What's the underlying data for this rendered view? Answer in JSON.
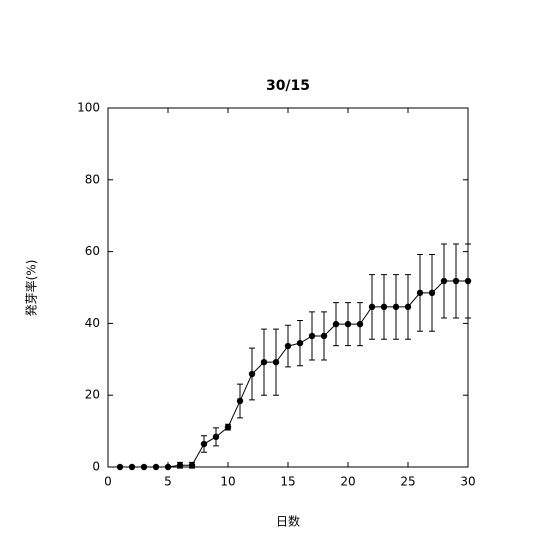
{
  "chart_data": {
    "type": "errorbar",
    "title": "30/15",
    "xlabel": "日数",
    "ylabel": "発芽率(%)",
    "x": [
      1,
      2,
      3,
      4,
      5,
      6,
      7,
      8,
      9,
      10,
      11,
      12,
      13,
      14,
      15,
      16,
      17,
      18,
      19,
      20,
      21,
      22,
      23,
      24,
      25,
      26,
      27,
      28,
      29,
      30
    ],
    "values": [
      0,
      0,
      0,
      0,
      0,
      0.5,
      0.5,
      6.4,
      8.4,
      11.1,
      18.4,
      25.9,
      29.2,
      29.2,
      33.7,
      34.5,
      36.5,
      36.5,
      39.8,
      39.8,
      39.8,
      44.6,
      44.6,
      44.6,
      44.6,
      48.5,
      48.5,
      51.8,
      51.8,
      51.8
    ],
    "errors": [
      0,
      0,
      0,
      0,
      0,
      0.8,
      0.8,
      2.3,
      2.5,
      0.8,
      4.7,
      7.2,
      9.2,
      9.2,
      5.8,
      6.3,
      6.7,
      6.7,
      6,
      6,
      6,
      9,
      9,
      9,
      9,
      10.7,
      10.7,
      10.3,
      10.3,
      10.3
    ],
    "color": "#000000",
    "xlim": [
      0,
      30
    ],
    "xticks": [
      0,
      5,
      10,
      15,
      20,
      25,
      30
    ],
    "ylim": [
      0,
      100
    ],
    "yticks": [
      0,
      20,
      40,
      60,
      80,
      100
    ]
  }
}
